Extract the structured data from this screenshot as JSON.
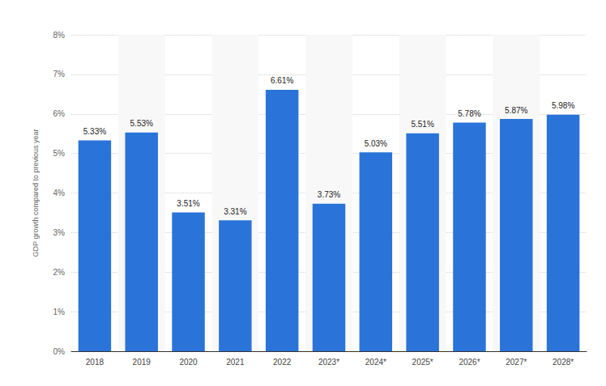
{
  "chart_data": {
    "type": "bar",
    "y_label": "GDP growth compared to previous year",
    "categories": [
      "2018",
      "2019",
      "2020",
      "2021",
      "2022",
      "2023*",
      "2024*",
      "2025*",
      "2026*",
      "2027*",
      "2028*"
    ],
    "values": [
      5.33,
      5.53,
      3.51,
      3.31,
      6.61,
      3.73,
      5.03,
      5.51,
      5.78,
      5.87,
      5.98
    ],
    "value_labels": [
      "5.33%",
      "5.53%",
      "3.51%",
      "3.31%",
      "6.61%",
      "3.73%",
      "5.03%",
      "5.51%",
      "5.78%",
      "5.87%",
      "5.98%"
    ],
    "color": "#2a73d9",
    "ylim": [
      0,
      8
    ],
    "yticks": [
      {
        "value": 0,
        "label": "0%"
      },
      {
        "value": 1,
        "label": "1%"
      },
      {
        "value": 2,
        "label": "2%"
      },
      {
        "value": 3,
        "label": "3%"
      },
      {
        "value": 4,
        "label": "4%"
      },
      {
        "value": 5,
        "label": "5%"
      },
      {
        "value": 6,
        "label": "6%"
      },
      {
        "value": 7,
        "label": "7%"
      },
      {
        "value": 8,
        "label": "8%"
      }
    ],
    "grid": true,
    "data_labels": true
  }
}
